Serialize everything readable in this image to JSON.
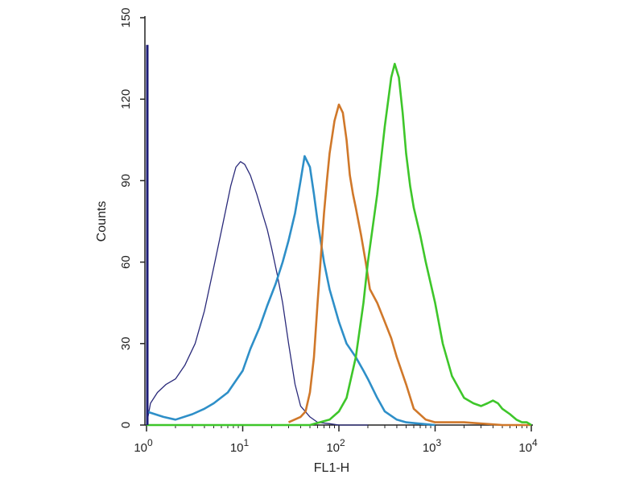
{
  "chart_data": {
    "type": "line",
    "xlabel": "FL1-H",
    "ylabel": "Counts",
    "x_scale": "log",
    "xlim": [
      1,
      10000
    ],
    "ylim": [
      0,
      150
    ],
    "grid": false,
    "x_ticks": [
      {
        "value": 1,
        "base": "10",
        "exp": "0"
      },
      {
        "value": 10,
        "base": "10",
        "exp": "1"
      },
      {
        "value": 100,
        "base": "10",
        "exp": "2"
      },
      {
        "value": 1000,
        "base": "10",
        "exp": "3"
      },
      {
        "value": 10000,
        "base": "10",
        "exp": "4"
      }
    ],
    "y_ticks": [
      0,
      30,
      60,
      90,
      120,
      150
    ],
    "series": [
      {
        "color": "#2a2a7a",
        "x": [
          1.0,
          1.1,
          1.3,
          1.6,
          2.0,
          2.5,
          3.2,
          4.0,
          5.0,
          6.3,
          7.5,
          8.5,
          9.5,
          10.5,
          12.0,
          14.0,
          16.0,
          18.0,
          20.0,
          23.0,
          26.0,
          30.0,
          35.0,
          40.0,
          50.0,
          60.0,
          80.0,
          100.0,
          150.0,
          200.0
        ],
        "y": [
          0,
          8,
          12,
          15,
          17,
          22,
          30,
          42,
          58,
          75,
          88,
          95,
          97,
          96,
          92,
          85,
          78,
          72,
          65,
          55,
          45,
          30,
          15,
          7,
          3,
          1,
          0.5,
          0,
          0,
          0
        ]
      },
      {
        "color": "#2e8fc8",
        "x": [
          1.0,
          1.5,
          2.0,
          3.0,
          4.0,
          5.0,
          7.0,
          10.0,
          12.0,
          15.0,
          18.0,
          22.0,
          26.0,
          30.0,
          35.0,
          40.0,
          44.0,
          50.0,
          55.0,
          60.0,
          70.0,
          80.0,
          100.0,
          120.0,
          150.0,
          180.0,
          200.0,
          250.0,
          300.0,
          400.0,
          500.0,
          700.0,
          1000.0
        ],
        "y": [
          5,
          3,
          2,
          4,
          6,
          8,
          12,
          20,
          28,
          36,
          44,
          52,
          60,
          68,
          78,
          90,
          99,
          95,
          85,
          75,
          60,
          50,
          38,
          30,
          25,
          20,
          17,
          10,
          5,
          2,
          1,
          0.5,
          0
        ]
      },
      {
        "color": "#d0782a",
        "x": [
          30.0,
          40.0,
          45.0,
          50.0,
          55.0,
          60.0,
          65.0,
          70.0,
          75.0,
          80.0,
          90.0,
          100.0,
          110.0,
          120.0,
          130.0,
          140.0,
          150.0,
          170.0,
          190.0,
          210.0,
          250.0,
          300.0,
          350.0,
          400.0,
          500.0,
          600.0,
          800.0,
          1000.0,
          2000.0,
          5000.0,
          10000.0
        ],
        "y": [
          1,
          3,
          5,
          12,
          25,
          45,
          62,
          78,
          90,
          100,
          112,
          118,
          115,
          105,
          92,
          85,
          80,
          70,
          60,
          50,
          45,
          38,
          32,
          25,
          15,
          6,
          2,
          1,
          1,
          0,
          0
        ]
      },
      {
        "color": "#3ec62a",
        "x": [
          1.0,
          20.0,
          50.0,
          80.0,
          100.0,
          120.0,
          150.0,
          180.0,
          200.0,
          250.0,
          300.0,
          350.0,
          380.0,
          420.0,
          460.0,
          500.0,
          550.0,
          600.0,
          700.0,
          800.0,
          1000.0,
          1200.0,
          1500.0,
          2000.0,
          2500.0,
          3000.0,
          3500.0,
          4000.0,
          4500.0,
          5000.0,
          6000.0,
          7000.0,
          8000.0,
          9000.0,
          10000.0
        ],
        "y": [
          0,
          0,
          0,
          2,
          5,
          10,
          25,
          45,
          60,
          85,
          110,
          128,
          133,
          128,
          115,
          100,
          88,
          80,
          70,
          60,
          45,
          30,
          18,
          10,
          8,
          7,
          8,
          9,
          8,
          6,
          4,
          2,
          1,
          1,
          0
        ]
      }
    ]
  }
}
